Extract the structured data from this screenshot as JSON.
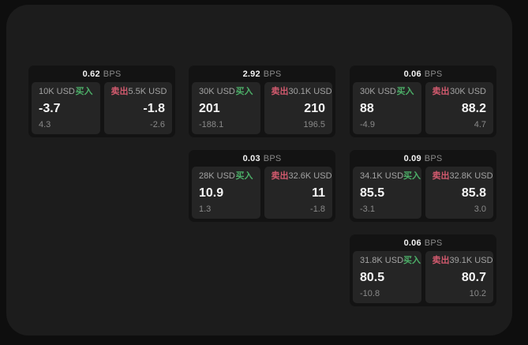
{
  "labels": {
    "bps": "BPS",
    "buy": "买入",
    "sell": "卖出"
  },
  "colors": {
    "buy": "#4caf68",
    "sell": "#d25a6e",
    "card_bg": "#131313",
    "panel_bg": "#252525",
    "surface_bg": "#1c1c1c",
    "outer_bg": "#0e0e0e"
  },
  "cards": [
    {
      "bps": "0.62",
      "buy": {
        "usd": "10K USD",
        "value": "-3.7",
        "sub": "4.3"
      },
      "sell": {
        "usd": "5.5K USD",
        "value": "-1.8",
        "sub": "-2.6"
      }
    },
    {
      "bps": "2.92",
      "buy": {
        "usd": "30K USD",
        "value": "201",
        "sub": "-188.1"
      },
      "sell": {
        "usd": "30.1K USD",
        "value": "210",
        "sub": "196.5"
      }
    },
    {
      "bps": "0.06",
      "buy": {
        "usd": "30K USD",
        "value": "88",
        "sub": "-4.9"
      },
      "sell": {
        "usd": "30K USD",
        "value": "88.2",
        "sub": "4.7"
      }
    },
    {
      "bps": "0.03",
      "buy": {
        "usd": "28K USD",
        "value": "10.9",
        "sub": "1.3"
      },
      "sell": {
        "usd": "32.6K USD",
        "value": "11",
        "sub": "-1.8"
      }
    },
    {
      "bps": "0.09",
      "buy": {
        "usd": "34.1K USD",
        "value": "85.5",
        "sub": "-3.1"
      },
      "sell": {
        "usd": "32.8K USD",
        "value": "85.8",
        "sub": "3.0"
      }
    },
    {
      "bps": "0.06",
      "buy": {
        "usd": "31.8K USD",
        "value": "80.5",
        "sub": "-10.8"
      },
      "sell": {
        "usd": "39.1K USD",
        "value": "80.7",
        "sub": "10.2"
      }
    }
  ]
}
